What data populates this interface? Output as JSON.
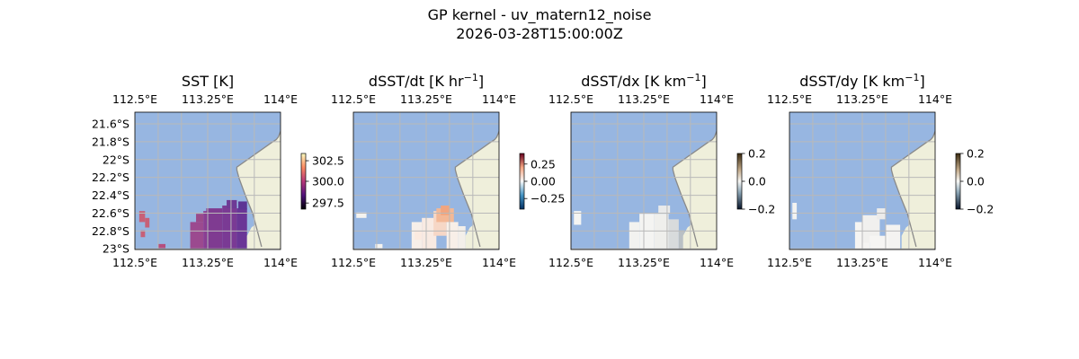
{
  "figure": {
    "title_line1": "GP kernel - uv_matern12_noise",
    "title_line2": "2026-03-28T15:00:00Z"
  },
  "colors": {
    "ocean": "#97b6e1",
    "land": "#efefdb",
    "coast": "#8a8a8a",
    "grid": "#b9b9b9"
  },
  "chart_data": [
    {
      "type": "heatmap",
      "title": "SST [K]",
      "variable": "SST",
      "x_ticks_top": [
        "112.5°E",
        "113.25°E",
        "114°E"
      ],
      "x_ticks_bottom": [
        "112.5°E",
        "113.25°E",
        "114°E"
      ],
      "y_ticks": [
        "21.6°S",
        "21.8°S",
        "22°S",
        "22.2°S",
        "22.4°S",
        "22.6°S",
        "22.8°S",
        "23°S"
      ],
      "colorbar": {
        "ticks": [
          "302.5",
          "300.0",
          "297.5"
        ],
        "range": [
          296.5,
          303.5
        ],
        "colormap": "magma"
      },
      "xlim": [
        112.5,
        114.0
      ],
      "ylim": [
        -23.0,
        -21.5
      ]
    },
    {
      "type": "heatmap",
      "title": "dSST/dt [K hr",
      "title_sup": "−1",
      "title_end": "]",
      "variable": "dSST/dt",
      "x_ticks_top": [
        "112.5°E",
        "113.25°E",
        "114°E"
      ],
      "x_ticks_bottom": [
        "112.5°E",
        "113.25°E",
        "114°E"
      ],
      "colorbar": {
        "ticks": [
          "0.25",
          "0.00",
          "−0.25"
        ],
        "range": [
          -0.45,
          0.45
        ],
        "colormap": "RdBu_r"
      },
      "xlim": [
        112.5,
        114.0
      ],
      "ylim": [
        -23.0,
        -21.5
      ]
    },
    {
      "type": "heatmap",
      "title": "dSST/dx [K km",
      "title_sup": "−1",
      "title_end": "]",
      "variable": "dSST/dx",
      "x_ticks_top": [
        "112.5°E",
        "113.25°E",
        "114°E"
      ],
      "x_ticks_bottom": [
        "112.5°E",
        "113.25°E",
        "114°E"
      ],
      "colorbar": {
        "ticks": [
          "0.2",
          "0.0",
          "−0.2"
        ],
        "range": [
          -0.2,
          0.2
        ],
        "colormap": "cmocean-diff"
      },
      "xlim": [
        112.5,
        114.0
      ],
      "ylim": [
        -23.0,
        -21.5
      ]
    },
    {
      "type": "heatmap",
      "title": "dSST/dy [K km",
      "title_sup": "−1",
      "title_end": "]",
      "variable": "dSST/dy",
      "x_ticks_top": [
        "112.5°E",
        "113.25°E",
        "114°E"
      ],
      "x_ticks_bottom": [
        "112.5°E",
        "113.25°E",
        "114°E"
      ],
      "colorbar": {
        "ticks": [
          "0.2",
          "0.0",
          "−0.2"
        ],
        "range": [
          -0.2,
          0.2
        ],
        "colormap": "cmocean-diff"
      },
      "xlim": [
        112.5,
        114.0
      ],
      "ylim": [
        -23.0,
        -21.5
      ]
    }
  ]
}
